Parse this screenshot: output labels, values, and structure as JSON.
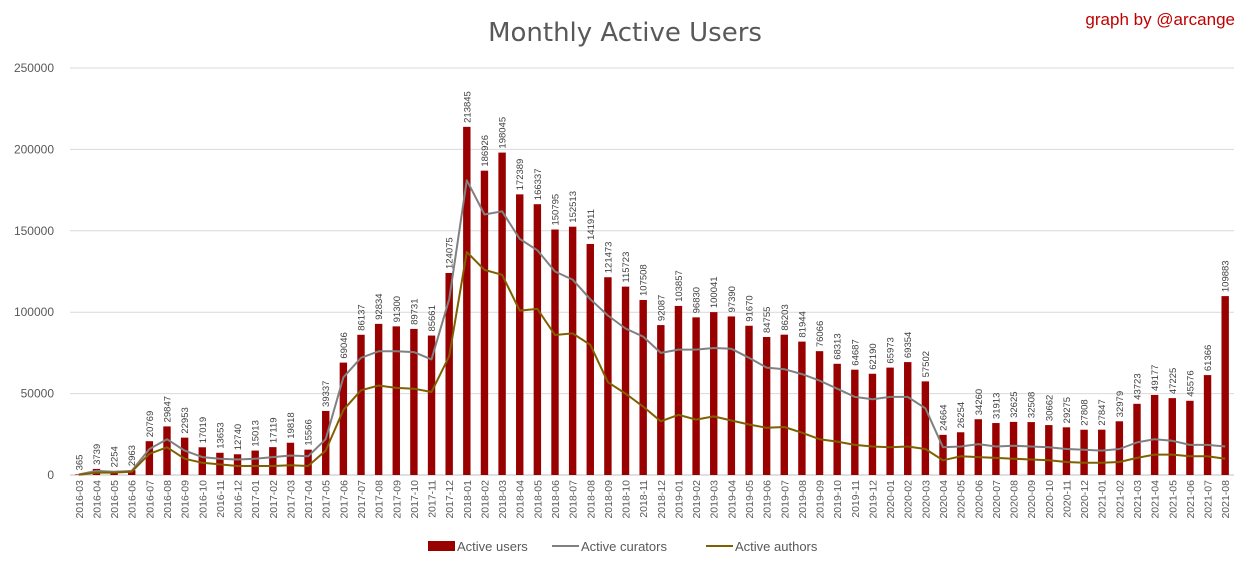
{
  "chart_data": {
    "type": "bar",
    "title": "Monthly Active Users",
    "credit": "graph by @arcange",
    "xlabel": "",
    "ylabel": "",
    "ylim": [
      0,
      250000
    ],
    "yticks": [
      "0",
      "50000",
      "100000",
      "150000",
      "200000",
      "250000"
    ],
    "yticks_values": [
      0,
      50000,
      100000,
      150000,
      200000,
      250000
    ],
    "grid": true,
    "legend_position": "bottom",
    "categories": [
      "2016-03",
      "2016-04",
      "2016-05",
      "2016-06",
      "2016-07",
      "2016-08",
      "2016-09",
      "2016-10",
      "2016-11",
      "2016-12",
      "2017-01",
      "2017-02",
      "2017-03",
      "2017-04",
      "2017-05",
      "2017-06",
      "2017-07",
      "2017-08",
      "2017-09",
      "2017-10",
      "2017-11",
      "2017-12",
      "2018-01",
      "2018-02",
      "2018-03",
      "2018-04",
      "2018-05",
      "2018-06",
      "2018-07",
      "2018-08",
      "2018-09",
      "2018-10",
      "2018-11",
      "2018-12",
      "2019-01",
      "2019-02",
      "2019-03",
      "2019-04",
      "2019-05",
      "2019-06",
      "2019-07",
      "2019-08",
      "2019-09",
      "2019-10",
      "2019-11",
      "2019-12",
      "2020-01",
      "2020-02",
      "2020-03",
      "2020-04",
      "2020-05",
      "2020-06",
      "2020-07",
      "2020-08",
      "2020-09",
      "2020-10",
      "2020-11",
      "2020-12",
      "2021-01",
      "2021-02",
      "2021-03",
      "2021-04",
      "2021-05",
      "2021-06",
      "2021-07",
      "2021-08"
    ],
    "series": [
      {
        "name": "Active users",
        "type": "bar",
        "color": "#990000",
        "values": [
          365,
          3739,
          2254,
          2963,
          20769,
          29847,
          22953,
          17019,
          13653,
          12740,
          15013,
          17119,
          19818,
          15566,
          39337,
          69046,
          86137,
          92834,
          91300,
          89731,
          85661,
          124075,
          213845,
          186926,
          198045,
          172389,
          166337,
          150795,
          152513,
          141911,
          121473,
          115723,
          107508,
          92087,
          103857,
          96830,
          100041,
          97390,
          91670,
          84755,
          86203,
          81944,
          76066,
          68313,
          64687,
          62190,
          65973,
          69354,
          57502,
          24664,
          26254,
          34260,
          31913,
          32625,
          32508,
          30662,
          29275,
          27808,
          27847,
          32979,
          43723,
          49177,
          47225,
          45576,
          61366,
          109883
        ]
      },
      {
        "name": "Active curators",
        "type": "line",
        "color": "#808080",
        "values": [
          300,
          2500,
          2000,
          2500,
          16000,
          22000,
          15000,
          11000,
          10000,
          9500,
          10000,
          11000,
          12000,
          11500,
          22000,
          60000,
          72000,
          76000,
          76000,
          75500,
          71000,
          108000,
          181000,
          160000,
          162000,
          145000,
          138000,
          125000,
          120000,
          108000,
          98000,
          90000,
          85000,
          75000,
          77000,
          77000,
          78000,
          77500,
          72000,
          66000,
          65000,
          62000,
          58000,
          53000,
          48000,
          46500,
          48000,
          48000,
          41000,
          17000,
          17500,
          19000,
          17500,
          18000,
          17500,
          17000,
          16000,
          15500,
          15000,
          16000,
          20000,
          22000,
          21000,
          18500,
          18500,
          17500
        ]
      },
      {
        "name": "Active authors",
        "type": "line",
        "color": "#7f6000",
        "values": [
          200,
          1500,
          1500,
          2000,
          13000,
          17000,
          10000,
          7500,
          6500,
          5500,
          5500,
          5500,
          6000,
          5500,
          15000,
          40000,
          52000,
          55000,
          53500,
          53000,
          51000,
          73000,
          137000,
          126000,
          123000,
          101000,
          102000,
          86000,
          87000,
          80000,
          57000,
          50000,
          42000,
          33000,
          37000,
          34000,
          36000,
          33500,
          31000,
          29000,
          29500,
          26000,
          22000,
          20500,
          18500,
          17500,
          17000,
          17500,
          16000,
          9000,
          11500,
          11000,
          10500,
          10000,
          9500,
          9000,
          8000,
          7500,
          7500,
          8000,
          10500,
          12500,
          12500,
          11500,
          11500,
          10000
        ]
      }
    ]
  }
}
